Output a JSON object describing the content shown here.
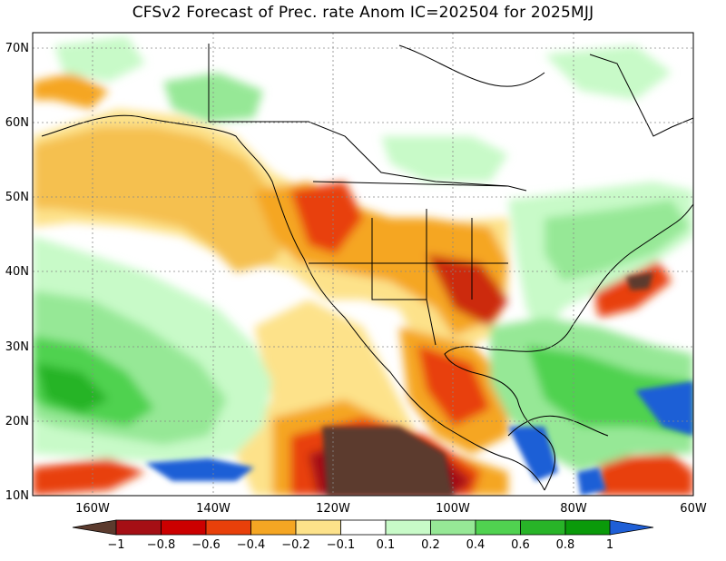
{
  "title": "CFSv2 Forecast of Prec. rate Anom IC=202504 for 2025MJJ",
  "map": {
    "lon_range": [
      -170,
      -60
    ],
    "lat_range": [
      10,
      72
    ],
    "lat_labels": [
      "10N",
      "20N",
      "30N",
      "40N",
      "50N",
      "60N",
      "70N"
    ],
    "lon_labels": [
      "160W",
      "140W",
      "120W",
      "100W",
      "80W",
      "60W"
    ]
  },
  "colorbar": {
    "labels": [
      "−1",
      "−0.8",
      "−0.6",
      "−0.4",
      "−0.2",
      "−0.1",
      "0.1",
      "0.2",
      "0.4",
      "0.6",
      "0.8",
      "1"
    ],
    "colors": [
      "#5c3b2e",
      "#a50f15",
      "#cc0000",
      "#e8400a",
      "#f5a623",
      "#fde28a",
      "#ffffff",
      "#c8fac8",
      "#96e896",
      "#50d250",
      "#28b428",
      "#0a9a0a",
      "#1f5fd6"
    ]
  }
}
